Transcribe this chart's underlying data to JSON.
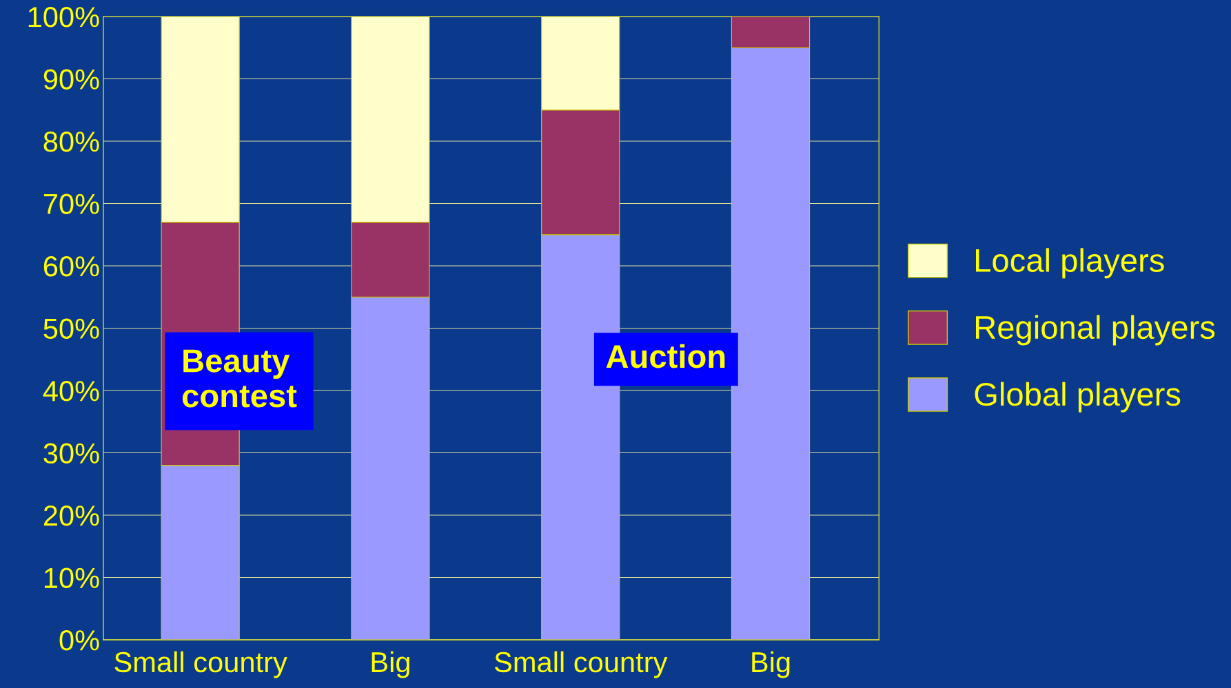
{
  "chart_data": {
    "type": "bar",
    "stacked": true,
    "categories": [
      "Small country",
      "Big",
      "Small country",
      "Big"
    ],
    "series": [
      {
        "name": "Global players",
        "color": "#9999ff",
        "values": [
          28,
          55,
          65,
          95
        ]
      },
      {
        "name": "Regional players",
        "color": "#993366",
        "values": [
          39,
          12,
          20,
          5
        ]
      },
      {
        "name": "Local players",
        "color": "#ffffcc",
        "values": [
          33,
          33,
          15,
          null
        ]
      }
    ],
    "ylim": [
      0,
      100
    ],
    "yticks": [
      {
        "value": 0,
        "label": "0%"
      },
      {
        "value": 10,
        "label": "10%"
      },
      {
        "value": 20,
        "label": "20%"
      },
      {
        "value": 30,
        "label": "30%"
      },
      {
        "value": 40,
        "label": "40%"
      },
      {
        "value": 50,
        "label": "50%"
      },
      {
        "value": 60,
        "label": "60%"
      },
      {
        "value": 70,
        "label": "70%"
      },
      {
        "value": 80,
        "label": "80%"
      },
      {
        "value": 90,
        "label": "90%"
      },
      {
        "value": 100,
        "label": "100%"
      }
    ],
    "grid": "y",
    "legend": "right",
    "annotations": [
      "Beauty contest",
      "Auction"
    ]
  }
}
